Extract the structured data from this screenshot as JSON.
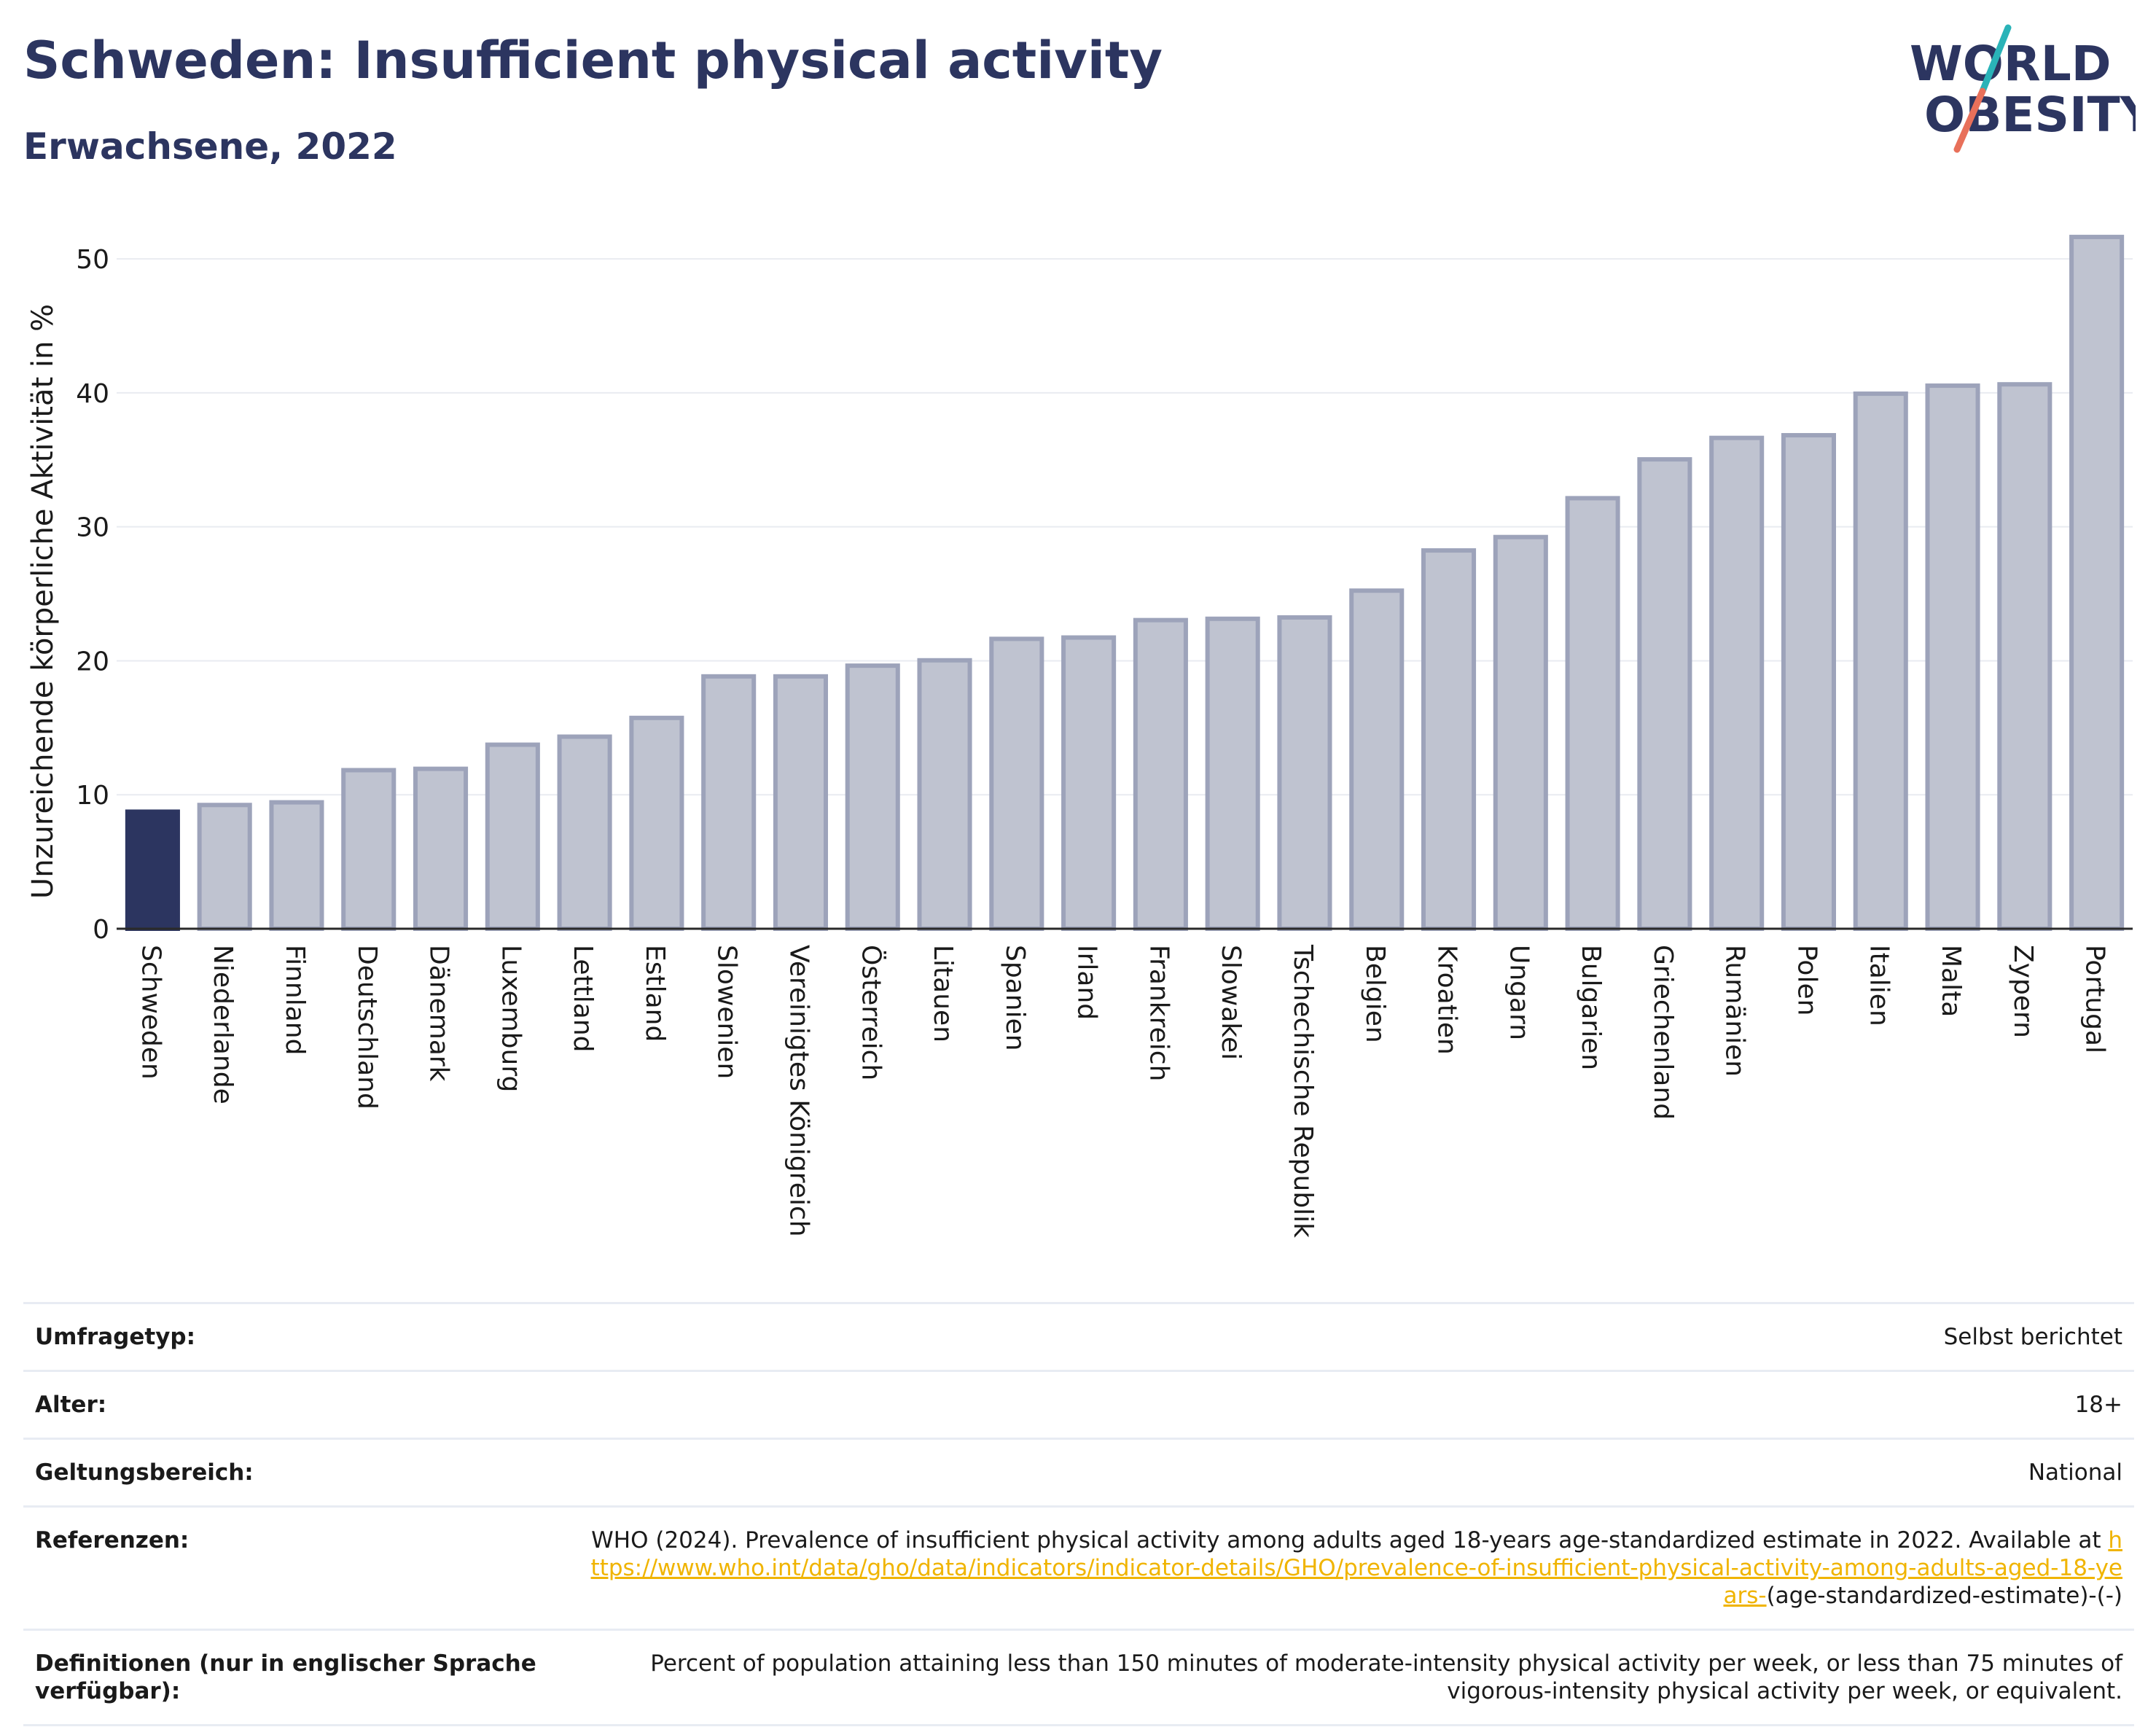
{
  "header": {
    "title": "Schweden: Insufficient physical activity",
    "subtitle": "Erwachsene, 2022"
  },
  "logo": {
    "line1": "WORLD",
    "line2": "OBESITY",
    "accent1": "#2ab3b8",
    "accent2": "#e8705a",
    "color": "#2c3560"
  },
  "chart_data": {
    "type": "bar",
    "ylabel": "Unzureichende körperliche Aktivität in %",
    "xlabel": "",
    "ylim": [
      0,
      53
    ],
    "yticks": [
      0,
      10,
      20,
      30,
      40,
      50
    ],
    "grid": true,
    "highlight": "Schweden",
    "colors": {
      "highlight": "#2c3560",
      "bar": "#bfc3d0",
      "bar_border": "#9da3ba"
    },
    "categories": [
      "Schweden",
      "Niederlande",
      "Finnland",
      "Deutschland",
      "Dänemark",
      "Luxemburg",
      "Lettland",
      "Estland",
      "Slowenien",
      "Vereinigtes Königreich",
      "Österreich",
      "Litauen",
      "Spanien",
      "Irland",
      "Frankreich",
      "Slowakei",
      "Tschechische Republik",
      "Belgien",
      "Kroatien",
      "Ungarn",
      "Bulgarien",
      "Griechenland",
      "Rumänien",
      "Polen",
      "Italien",
      "Malta",
      "Zypern",
      "Portugal"
    ],
    "values": [
      8.9,
      9.4,
      9.6,
      12.0,
      12.1,
      13.9,
      14.5,
      15.9,
      19.0,
      19.0,
      19.8,
      20.2,
      21.8,
      21.9,
      23.2,
      23.3,
      23.4,
      25.4,
      28.4,
      29.4,
      32.3,
      35.2,
      36.8,
      37.0,
      40.1,
      40.7,
      40.8,
      51.8
    ]
  },
  "meta": [
    {
      "label": "Umfragetyp:",
      "value": "Selbst berichtet"
    },
    {
      "label": "Alter:",
      "value": "18+"
    },
    {
      "label": "Geltungsbereich:",
      "value": "National"
    },
    {
      "label": "Referenzen:",
      "value_pre": "WHO (2024). Prevalence of insufficient physical activity among adults aged 18-years age-standardized estimate in 2022. Available at",
      "link": "https://www.who.int/data/gho/data/indicators/indicator-details/GHO/prevalence-of-insufficient-physical-activity-among-adults-aged-18-years-",
      "value_post": "(age-standardized-estimate)-(-)"
    },
    {
      "label": "Definitionen (nur in englischer Sprache verfügbar):",
      "value": "Percent of population attaining less than 150 minutes of moderate-intensity physical activity per week, or less than 75 minutes of vigorous-intensity physical activity per week, or equivalent."
    }
  ]
}
